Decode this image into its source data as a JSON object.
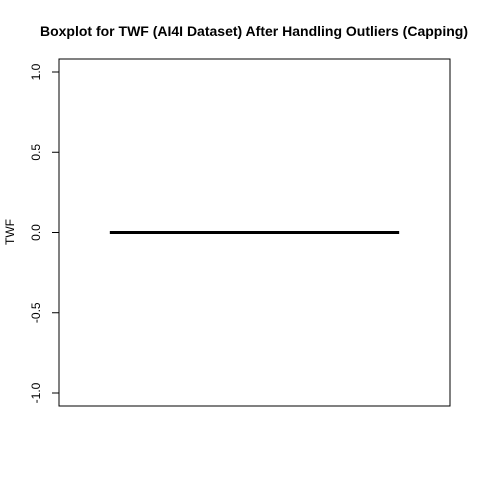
{
  "chart_data": {
    "type": "boxplot",
    "title": "Boxplot for TWF (AI4I Dataset) After Handling Outliers (Capping)",
    "xlabel": "",
    "ylabel": "TWF",
    "ylim": [
      -1.0,
      1.0
    ],
    "yticks": [
      -1.0,
      -0.5,
      0.0,
      0.5,
      1.0
    ],
    "ytick_labels": [
      "-1.0",
      "-0.5",
      "0.0",
      "0.5",
      "1.0"
    ],
    "grid": false,
    "series": [
      {
        "min": 0,
        "q1": 0,
        "median": 0,
        "q3": 0,
        "max": 0
      }
    ],
    "colors": {
      "axis": "#000000",
      "median": "#000000",
      "background": "#ffffff"
    }
  }
}
